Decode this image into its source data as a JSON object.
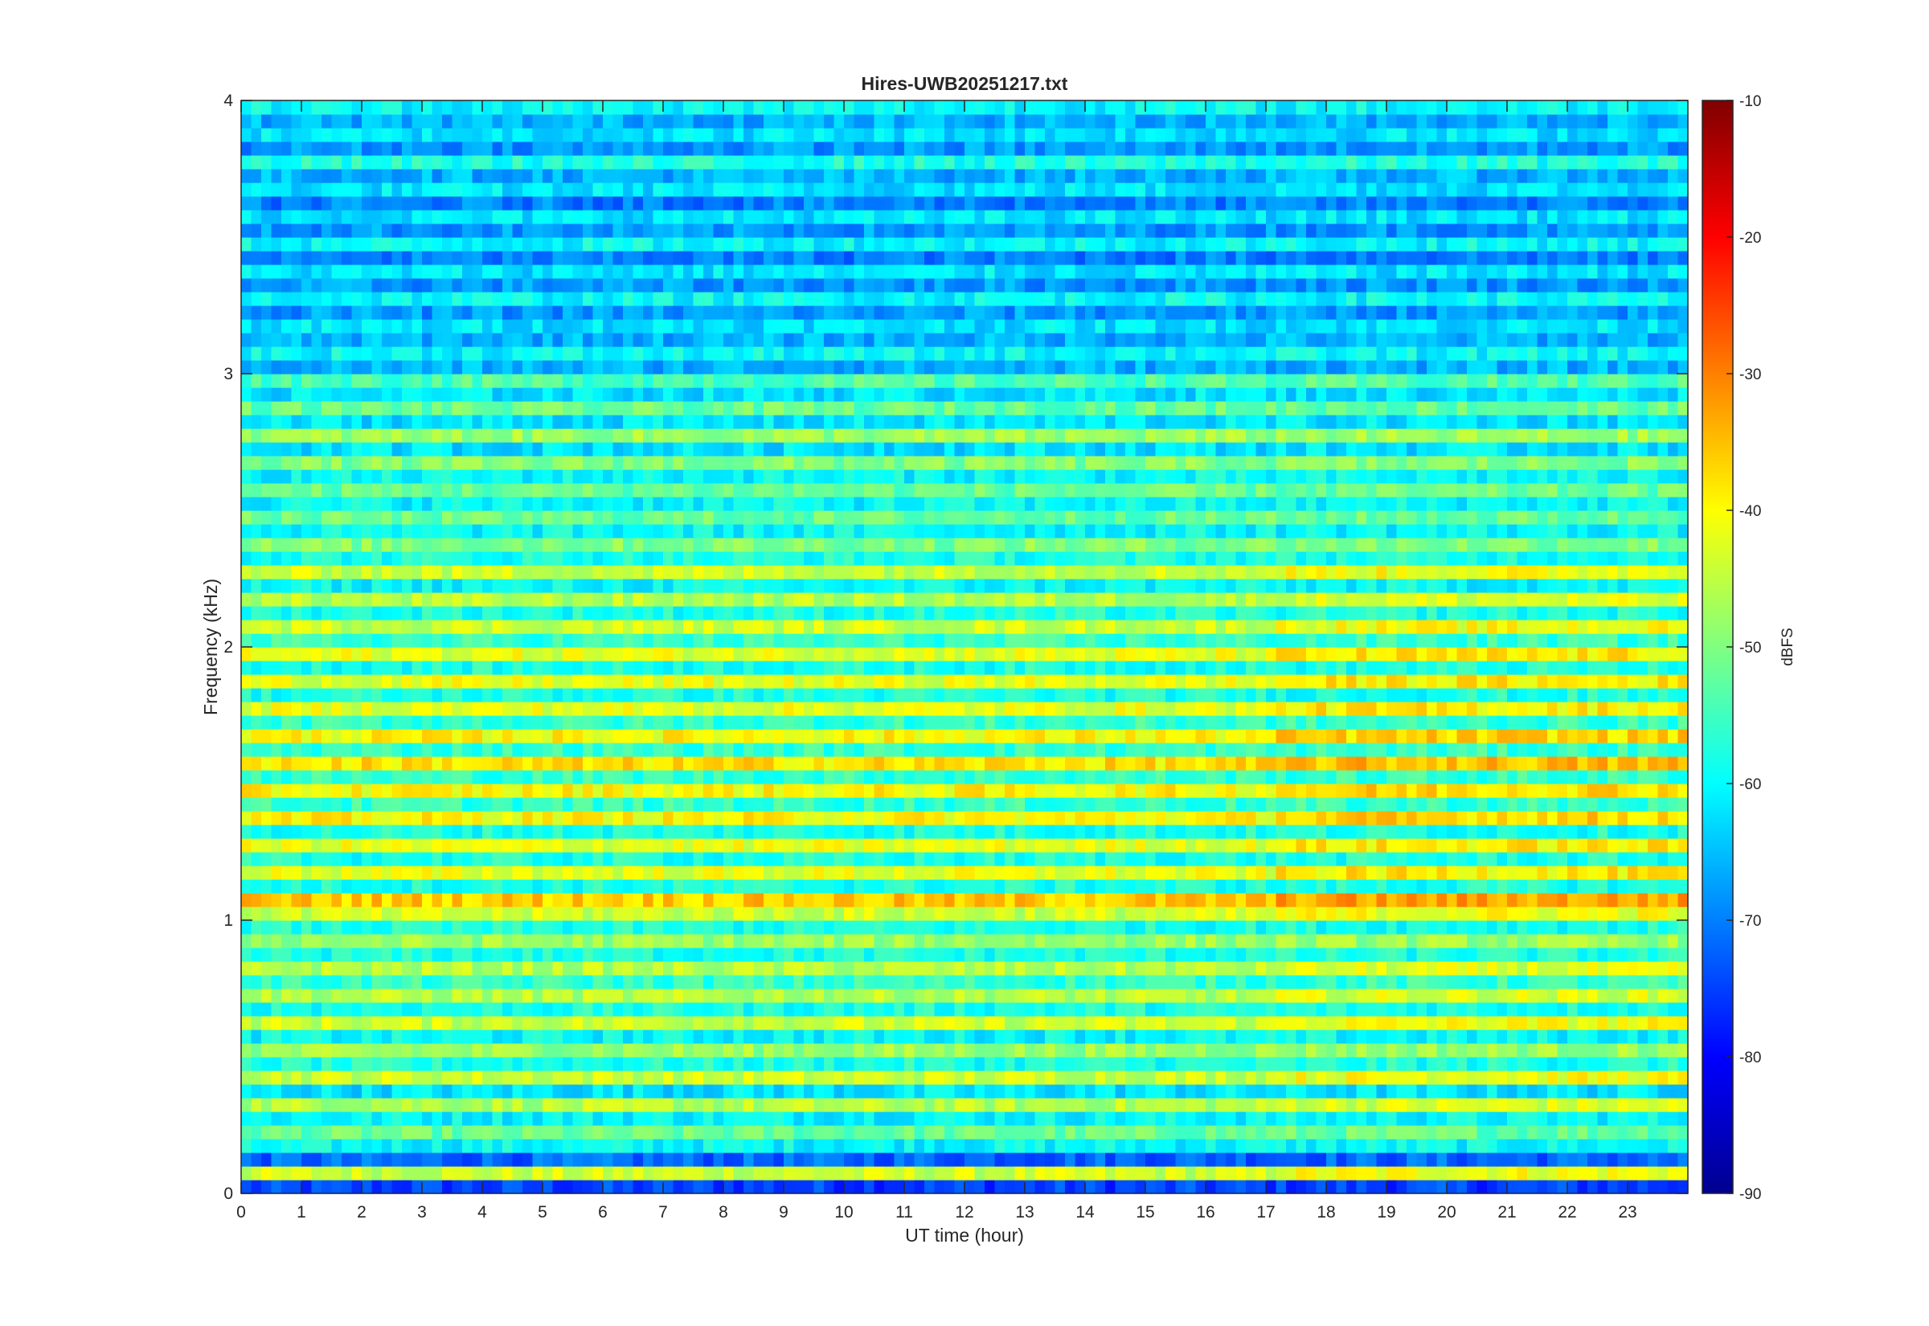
{
  "chart_data": {
    "type": "heatmap",
    "title": "Hires-UWB20251217.txt",
    "xlabel": "UT time (hour)",
    "ylabel": "Frequency (kHz)",
    "colorbar_label": "dBFS",
    "colormap": "jet",
    "x_range": [
      0,
      24
    ],
    "x_ticks": [
      "0",
      "1",
      "2",
      "3",
      "4",
      "5",
      "6",
      "7",
      "8",
      "9",
      "10",
      "11",
      "12",
      "13",
      "14",
      "15",
      "16",
      "17",
      "18",
      "19",
      "20",
      "21",
      "22",
      "23"
    ],
    "y_range": [
      0,
      4
    ],
    "y_ticks": [
      "0",
      "1",
      "2",
      "3",
      "4"
    ],
    "colorbar_range": [
      -90,
      -10
    ],
    "colorbar_ticks": [
      "-90",
      "-80",
      "-70",
      "-60",
      "-50",
      "-40",
      "-30",
      "-20",
      "-10"
    ],
    "grid": false,
    "band_profile_dbfs": {
      "frequency_khz": [
        0.0,
        0.05,
        0.1,
        0.15,
        0.2,
        0.25,
        0.3,
        0.35,
        0.4,
        0.45,
        0.5,
        0.55,
        0.6,
        0.65,
        0.7,
        0.75,
        0.8,
        0.85,
        0.9,
        0.95,
        1.0,
        1.05,
        1.1,
        1.15,
        1.2,
        1.25,
        1.3,
        1.35,
        1.4,
        1.45,
        1.5,
        1.55,
        1.6,
        1.65,
        1.7,
        1.75,
        1.8,
        1.85,
        1.9,
        1.95,
        2.0,
        2.05,
        2.1,
        2.15,
        2.2,
        2.25,
        2.3,
        2.35,
        2.4,
        2.45,
        2.5,
        2.55,
        2.6,
        2.65,
        2.7,
        2.75,
        2.8,
        2.85,
        2.9,
        2.95,
        3.0,
        3.05,
        3.1,
        3.15,
        3.2,
        3.25,
        3.3,
        3.35,
        3.4,
        3.45,
        3.5,
        3.55,
        3.6,
        3.65,
        3.7,
        3.75,
        3.8,
        3.85,
        3.9,
        3.95
      ],
      "level_dbfs": [
        -75,
        -44,
        -72,
        -60,
        -52,
        -60,
        -46,
        -62,
        -44,
        -58,
        -48,
        -60,
        -44,
        -58,
        -46,
        -56,
        -46,
        -58,
        -48,
        -58,
        -44,
        -36,
        -58,
        -42,
        -58,
        -42,
        -58,
        -40,
        -56,
        -40,
        -56,
        -38,
        -56,
        -40,
        -56,
        -42,
        -58,
        -42,
        -58,
        -42,
        -56,
        -44,
        -58,
        -46,
        -60,
        -44,
        -58,
        -50,
        -60,
        -52,
        -60,
        -52,
        -60,
        -50,
        -62,
        -48,
        -62,
        -52,
        -62,
        -54,
        -66,
        -60,
        -66,
        -62,
        -68,
        -60,
        -68,
        -62,
        -70,
        -60,
        -68,
        -62,
        -70,
        -62,
        -66,
        -58,
        -68,
        -62,
        -66,
        -60
      ]
    }
  }
}
